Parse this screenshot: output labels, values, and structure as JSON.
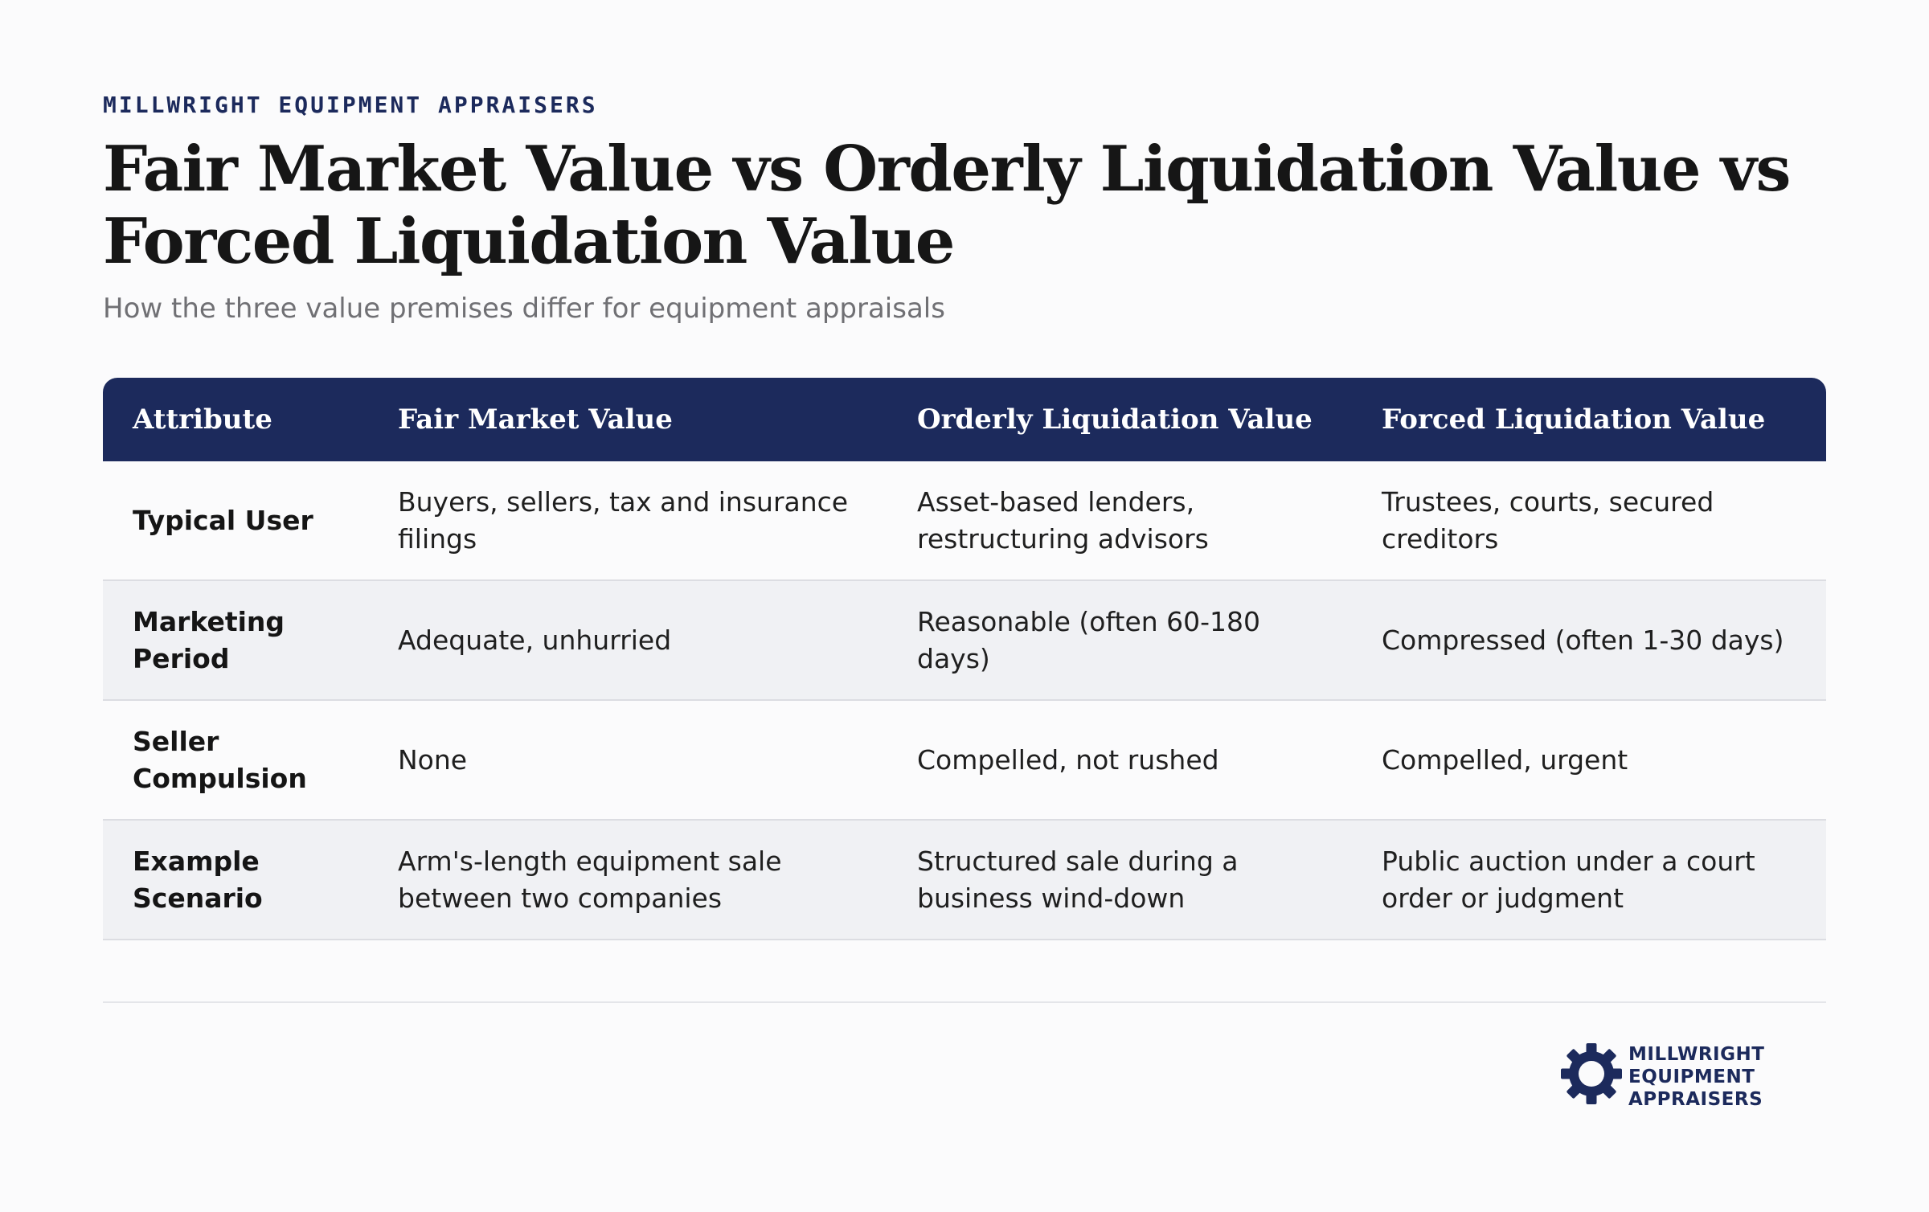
{
  "header": {
    "eyebrow": "MILLWRIGHT EQUIPMENT APPRAISERS",
    "title": "Fair Market Value vs Orderly Liquidation Value vs Forced Liquidation Value",
    "subtitle": "How the three value premises differ for equipment appraisals"
  },
  "table": {
    "columns": [
      "Attribute",
      "Fair Market Value",
      "Orderly Liquidation Value",
      "Forced Liquidation Value"
    ],
    "rows": [
      [
        "Typical User",
        "Buyers, sellers, tax and insurance filings",
        "Asset-based lenders, restructuring advisors",
        "Trustees, courts, secured creditors"
      ],
      [
        "Marketing Period",
        "Adequate, unhurried",
        "Reasonable (often 60-180 days)",
        "Compressed (often 1-30 days)"
      ],
      [
        "Seller Compulsion",
        "None",
        "Compelled, not rushed",
        "Compelled, urgent"
      ],
      [
        "Example Scenario",
        "Arm's-length equipment sale between two companies",
        "Structured sale during a business wind-down",
        "Public auction under a court order or judgment"
      ]
    ]
  },
  "logo": {
    "icon": "gear-icon",
    "color": "#1c2a5c",
    "lines": [
      "MILLWRIGHT",
      "EQUIPMENT",
      "APPRAISERS"
    ]
  },
  "colors": {
    "header_bg": "#1c2a5c",
    "alt_row_bg": "#f0f1f4",
    "page_bg": "#fbfbfc"
  }
}
